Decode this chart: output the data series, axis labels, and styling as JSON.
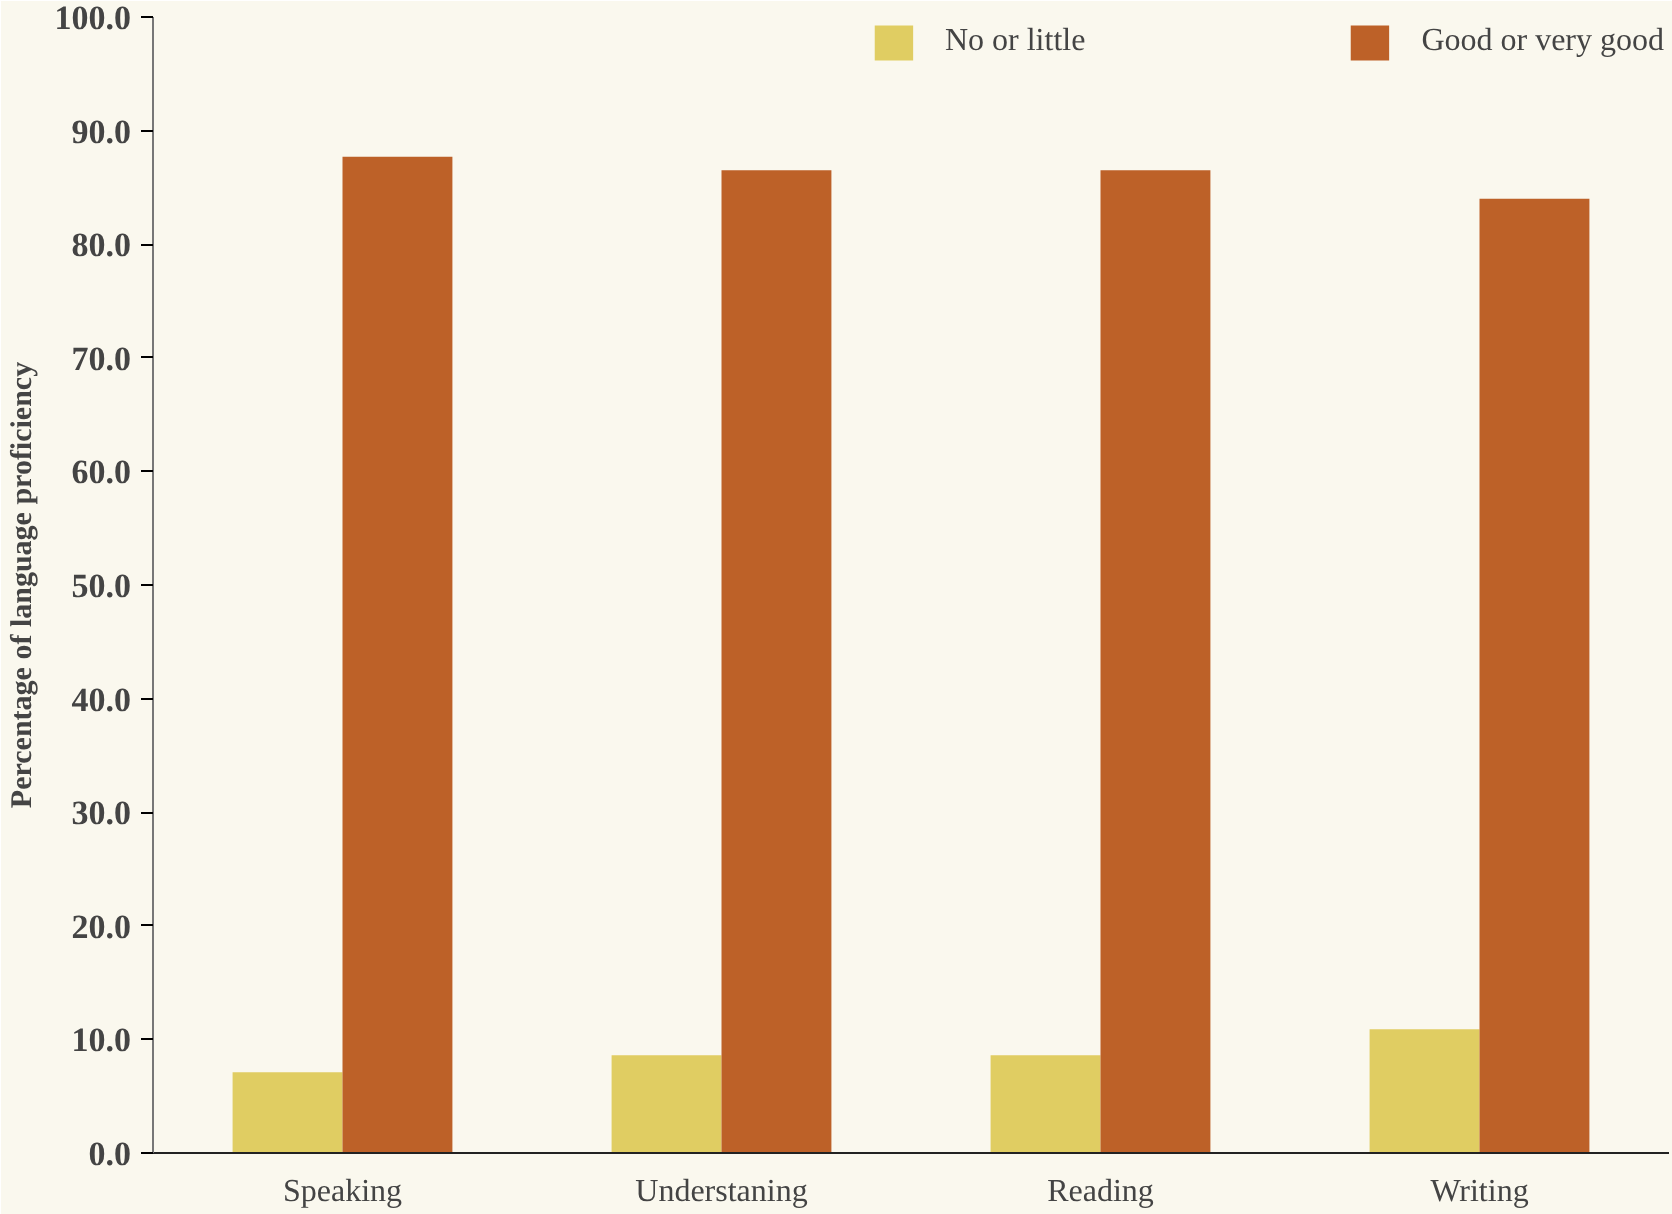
{
  "chart_data": {
    "type": "bar",
    "ylabel": "Percentage of language proficiency",
    "categories": [
      "Speaking",
      "Understaning",
      "Reading",
      "Writing"
    ],
    "series": [
      {
        "name": "No or little",
        "color": "#e0cd62",
        "values": [
          7.1,
          8.6,
          8.6,
          10.9
        ]
      },
      {
        "name": "Good or very good",
        "color": "#bd6128",
        "values": [
          87.7,
          86.5,
          86.5,
          84.0
        ]
      }
    ],
    "ylim": [
      0,
      100
    ],
    "yticks": [
      {
        "value": 0,
        "label": "0.0"
      },
      {
        "value": 10,
        "label": "10.0"
      },
      {
        "value": 20,
        "label": "20.0"
      },
      {
        "value": 30,
        "label": "30.0"
      },
      {
        "value": 40,
        "label": "40.0"
      },
      {
        "value": 50,
        "label": "50.0"
      },
      {
        "value": 60,
        "label": "60.0"
      },
      {
        "value": 70,
        "label": "70.0"
      },
      {
        "value": 80,
        "label": "80.0"
      },
      {
        "value": 90,
        "label": "90.0"
      },
      {
        "value": 100,
        "label": "100.0"
      }
    ],
    "grid": false,
    "legend": "top right"
  }
}
